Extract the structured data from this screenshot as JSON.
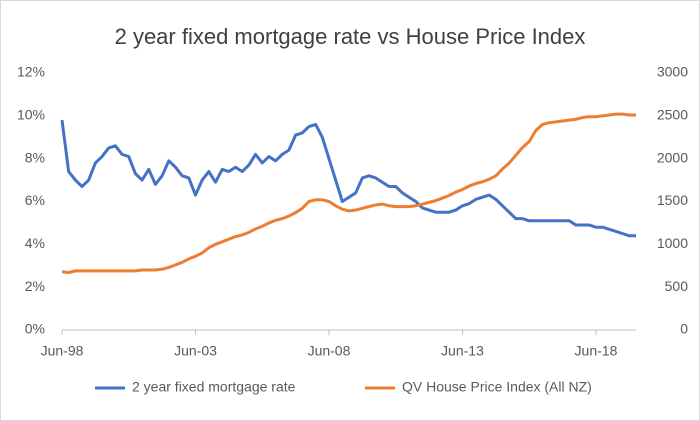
{
  "chart_data": {
    "type": "line",
    "title": "2 year fixed mortgage rate vs House Price Index",
    "categories": [
      "Jun-98",
      null,
      null,
      null,
      null,
      null,
      null,
      null,
      null,
      null,
      null,
      null,
      null,
      null,
      null,
      null,
      null,
      null,
      null,
      null,
      "Jun-03",
      null,
      null,
      null,
      null,
      null,
      null,
      null,
      null,
      null,
      null,
      null,
      null,
      null,
      null,
      null,
      null,
      null,
      null,
      null,
      "Jun-08",
      null,
      null,
      null,
      null,
      null,
      null,
      null,
      null,
      null,
      null,
      null,
      null,
      null,
      null,
      null,
      null,
      null,
      null,
      null,
      "Jun-13",
      null,
      null,
      null,
      null,
      null,
      null,
      null,
      null,
      null,
      null,
      null,
      null,
      null,
      null,
      null,
      null,
      null,
      null,
      null,
      "Jun-18",
      null,
      null,
      null,
      null,
      null,
      null
    ],
    "series": [
      {
        "name": "2 year fixed mortgage rate",
        "color": "#4472c4",
        "axis": "y",
        "values": [
          9.8,
          7.4,
          7.0,
          6.7,
          7.0,
          7.8,
          8.1,
          8.5,
          8.6,
          8.2,
          8.1,
          7.3,
          7.0,
          7.5,
          6.8,
          7.2,
          7.9,
          7.6,
          7.2,
          7.1,
          6.3,
          7.0,
          7.4,
          6.9,
          7.5,
          7.4,
          7.6,
          7.4,
          7.7,
          8.2,
          7.8,
          8.1,
          7.9,
          8.2,
          8.4,
          9.1,
          9.2,
          9.5,
          9.6,
          9.0,
          8.0,
          7.0,
          6.0,
          6.2,
          6.4,
          7.1,
          7.2,
          7.1,
          6.9,
          6.7,
          6.7,
          6.4,
          6.2,
          6.0,
          5.7,
          5.6,
          5.5,
          5.5,
          5.5,
          5.6,
          5.8,
          5.9,
          6.1,
          6.2,
          6.3,
          6.1,
          5.8,
          5.5,
          5.2,
          5.2,
          5.1,
          5.1,
          5.1,
          5.1,
          5.1,
          5.1,
          5.1,
          4.9,
          4.9,
          4.9,
          4.8,
          4.8,
          4.7,
          4.6,
          4.5,
          4.4,
          4.4
        ]
      },
      {
        "name": "QV House Price Index (All NZ)",
        "color": "#ed7d31",
        "axis": "y2",
        "values": [
          680,
          670,
          690,
          690,
          690,
          690,
          690,
          690,
          690,
          690,
          690,
          690,
          700,
          700,
          700,
          710,
          730,
          760,
          790,
          830,
          860,
          900,
          960,
          1000,
          1030,
          1060,
          1090,
          1110,
          1140,
          1180,
          1210,
          1250,
          1280,
          1300,
          1330,
          1370,
          1420,
          1500,
          1520,
          1520,
          1500,
          1450,
          1410,
          1390,
          1400,
          1420,
          1440,
          1460,
          1470,
          1450,
          1440,
          1440,
          1440,
          1450,
          1470,
          1490,
          1510,
          1540,
          1570,
          1610,
          1640,
          1680,
          1710,
          1730,
          1760,
          1800,
          1880,
          1950,
          2040,
          2130,
          2200,
          2330,
          2400,
          2420,
          2430,
          2440,
          2450,
          2460,
          2480,
          2490,
          2490,
          2500,
          2510,
          2520,
          2520,
          2510,
          2510
        ]
      }
    ],
    "ylim": [
      0,
      12
    ],
    "yticks": [
      {
        "value": 0,
        "label": "0%"
      },
      {
        "value": 2,
        "label": "2%"
      },
      {
        "value": 4,
        "label": "4%"
      },
      {
        "value": 6,
        "label": "6%"
      },
      {
        "value": 8,
        "label": "8%"
      },
      {
        "value": 10,
        "label": "10%"
      },
      {
        "value": 12,
        "label": "12%"
      }
    ],
    "y2lim": [
      0,
      3000
    ],
    "y2ticks": [
      0,
      500,
      1000,
      1500,
      2000,
      2500,
      3000
    ],
    "grid": false,
    "legend": "bottom"
  }
}
